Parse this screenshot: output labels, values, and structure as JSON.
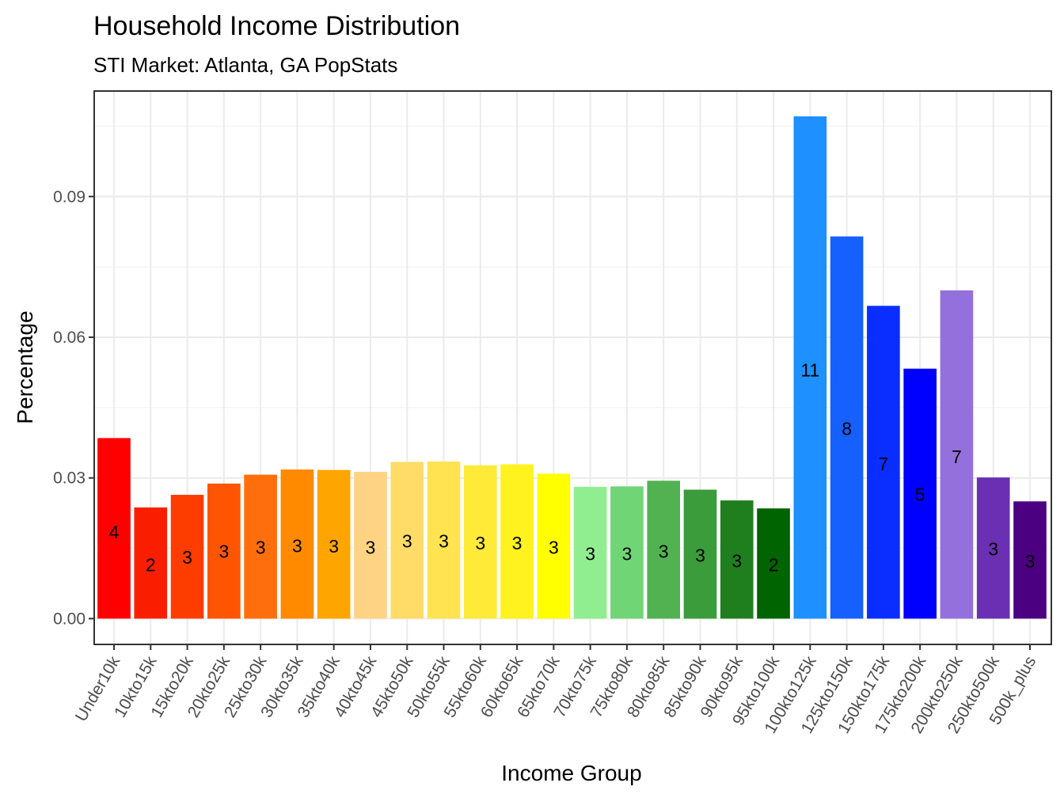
{
  "chart_data": {
    "type": "bar",
    "title": "Household Income Distribution",
    "subtitle": "STI Market: Atlanta, GA PopStats",
    "xlabel": "Income Group",
    "ylabel": "Percentage",
    "ylim": [
      -0.0055,
      0.1125
    ],
    "yticks": [
      0.0,
      0.03,
      0.06,
      0.09
    ],
    "ytick_labels": [
      "0.00",
      "0.03",
      "0.06",
      "0.09"
    ],
    "grid": true,
    "legend": "none",
    "categories": [
      "Under10k",
      "10kto15k",
      "15kto20k",
      "20kto25k",
      "25kto30k",
      "30kto35k",
      "35kto40k",
      "40kto45k",
      "45kto50k",
      "50kto55k",
      "55kto60k",
      "60kto65k",
      "65kto70k",
      "70kto75k",
      "75kto80k",
      "80kto85k",
      "85kto90k",
      "90kto95k",
      "95kto100k",
      "100kto125k",
      "125kto150k",
      "150kto175k",
      "175kto200k",
      "200kto250k",
      "250kto500k",
      "500k_plus"
    ],
    "values": [
      0.0385,
      0.0237,
      0.0264,
      0.0288,
      0.0307,
      0.0318,
      0.0317,
      0.0313,
      0.0334,
      0.0335,
      0.0327,
      0.0329,
      0.0309,
      0.0281,
      0.0282,
      0.0294,
      0.0275,
      0.0252,
      0.0235,
      0.1071,
      0.0815,
      0.0667,
      0.0533,
      0.07,
      0.0301,
      0.025
    ],
    "bar_labels": [
      "4",
      "2",
      "3",
      "3",
      "3",
      "3",
      "3",
      "3",
      "3",
      "3",
      "3",
      "3",
      "3",
      "3",
      "3",
      "3",
      "3",
      "3",
      "2",
      "11",
      "8",
      "7",
      "5",
      "7",
      "3",
      "3"
    ],
    "label_values": [
      0.0185,
      0.0115,
      0.0131,
      0.0143,
      0.0152,
      0.0155,
      0.0154,
      0.0152,
      0.0165,
      0.0165,
      0.0161,
      0.0161,
      0.0152,
      0.0138,
      0.0138,
      0.0143,
      0.0135,
      0.0123,
      0.0115,
      0.053,
      0.0405,
      0.033,
      0.0265,
      0.0345,
      0.0148,
      0.0122
    ],
    "colors": [
      "#ff0000",
      "#fa1e00",
      "#fd3d00",
      "#ff5500",
      "#ff6e0d",
      "#ff8a00",
      "#ffa500",
      "#ffd384",
      "#ffdb67",
      "#ffe350",
      "#ffea38",
      "#fff21e",
      "#ffff00",
      "#90ee90",
      "#70d575",
      "#52b252",
      "#3a9c3a",
      "#1f7f1f",
      "#006400",
      "#1e90ff",
      "#1560ff",
      "#0a2eff",
      "#0000ff",
      "#9370db",
      "#6a2fb3",
      "#4b0082"
    ]
  }
}
